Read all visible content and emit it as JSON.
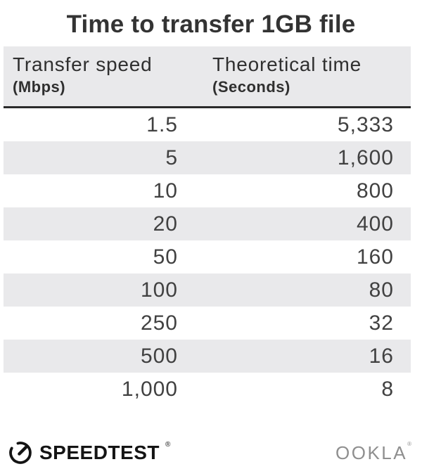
{
  "title": "Time to transfer 1GB file",
  "table": {
    "columns": [
      {
        "label": "Transfer speed",
        "unit": "(Mbps)"
      },
      {
        "label": "Theoretical time",
        "unit": "(Seconds)"
      }
    ],
    "rows": [
      {
        "speed": "1.5",
        "time": "5,333"
      },
      {
        "speed": "5",
        "time": "1,600"
      },
      {
        "speed": "10",
        "time": "800"
      },
      {
        "speed": "20",
        "time": "400"
      },
      {
        "speed": "50",
        "time": "160"
      },
      {
        "speed": "100",
        "time": "80"
      },
      {
        "speed": "250",
        "time": "32"
      },
      {
        "speed": "500",
        "time": "16"
      },
      {
        "speed": "1,000",
        "time": "8"
      }
    ]
  },
  "footer": {
    "speedtest_label": "SPEEDTEST",
    "speedtest_reg": "®",
    "ookla_label": "OOKLA",
    "ookla_reg": "®"
  },
  "colors": {
    "stripe": "#e9e9eb",
    "header_bg": "#e9e9eb",
    "header_border": "#2b2b2b",
    "cell_text": "#414141",
    "title_text": "#333333",
    "speedtest_black": "#141414",
    "ookla_gray": "#8f8f8f"
  },
  "chart_data": {
    "type": "table",
    "title": "Time to transfer 1GB file",
    "columns": [
      "Transfer speed (Mbps)",
      "Theoretical time (Seconds)"
    ],
    "rows": [
      [
        1.5,
        5333
      ],
      [
        5,
        1600
      ],
      [
        10,
        800
      ],
      [
        20,
        400
      ],
      [
        50,
        160
      ],
      [
        100,
        80
      ],
      [
        250,
        32
      ],
      [
        500,
        16
      ],
      [
        1000,
        8
      ]
    ],
    "layout": {
      "striped": true,
      "stripe_rows": "even (2nd, 4th, ...)",
      "value_alignment": "right"
    }
  }
}
